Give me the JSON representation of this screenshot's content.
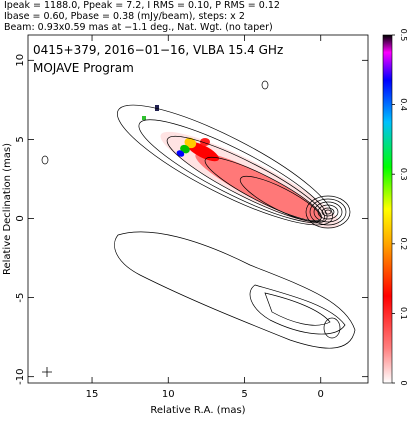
{
  "chart_data": {
    "type": "contour",
    "header": [
      "Ipeak = 1188.0, Ppeak = 7.2, I RMS = 0.10, P RMS = 0.12",
      "Ibase = 0.60, Pbase = 0.38 (mJy/beam), steps: x 2",
      "Beam: 0.93x0.59 mas at −1.1 deg., Nat. Wgt. (no taper)"
    ],
    "annotations": [
      "0415+379, 2016−01−16, VLBA 15.4 GHz",
      "MOJAVE Program"
    ],
    "xlabel": "Relative R.A. (mas)",
    "ylabel": "Relative Declination (mas)",
    "xlim": [
      19.2,
      -3.1
    ],
    "xticks": [
      15,
      10,
      5,
      0
    ],
    "ylim": [
      -10.4,
      11.6
    ],
    "yticks": [
      10,
      5,
      0,
      -5,
      -10
    ],
    "colorbar": {
      "lim": [
        0,
        0.5
      ],
      "ticks": [
        0,
        0.1,
        0.2,
        0.3,
        0.4,
        0.5
      ]
    }
  }
}
